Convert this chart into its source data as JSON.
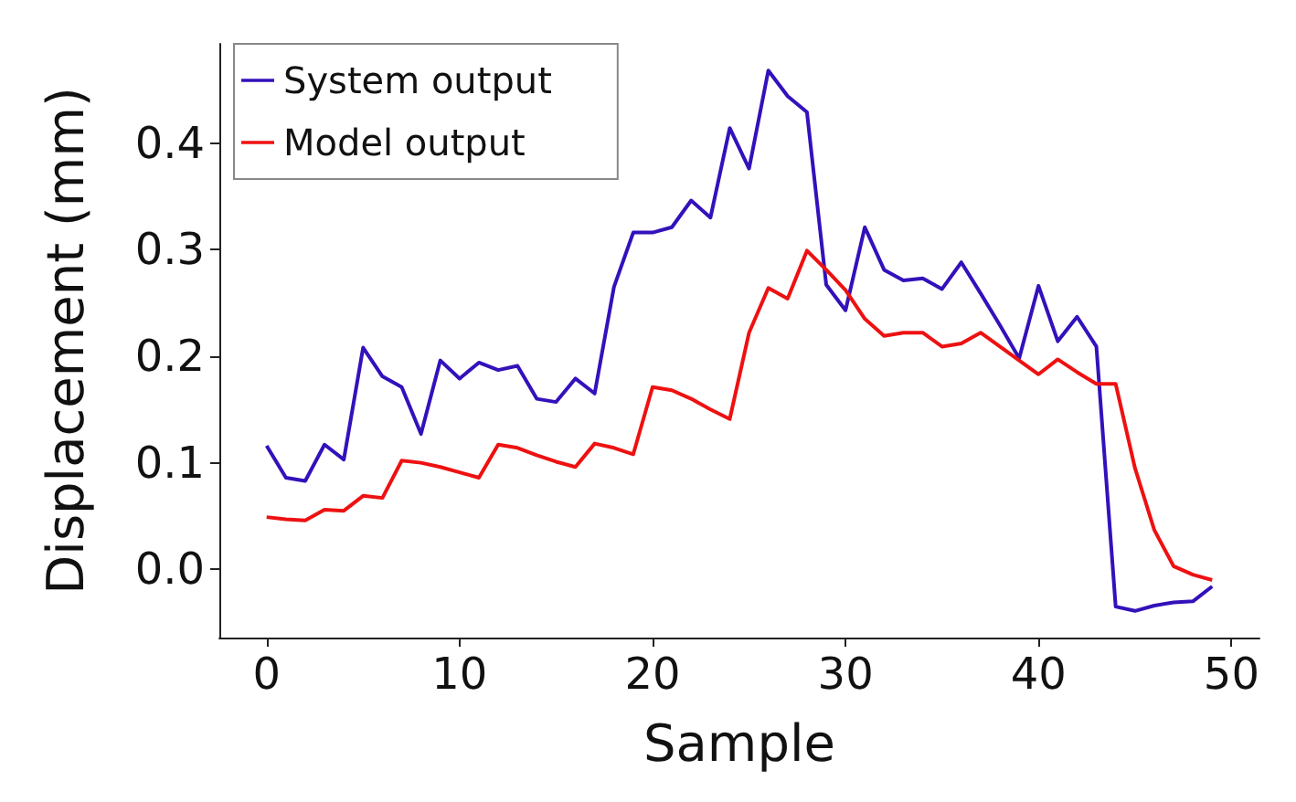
{
  "chart_data": {
    "type": "line",
    "xlabel": "Sample",
    "ylabel": "Displacement (mm)",
    "x": [
      0,
      1,
      2,
      3,
      4,
      5,
      6,
      7,
      8,
      9,
      10,
      11,
      12,
      13,
      14,
      15,
      16,
      17,
      18,
      19,
      20,
      21,
      22,
      23,
      24,
      25,
      26,
      27,
      28,
      29,
      30,
      31,
      32,
      33,
      34,
      35,
      36,
      37,
      38,
      39,
      40,
      41,
      42,
      43,
      44,
      45,
      46,
      47,
      48,
      49
    ],
    "series": [
      {
        "name": "System output",
        "color": "#3311bb",
        "values": [
          0.116,
          0.086,
          0.083,
          0.117,
          0.103,
          0.208,
          0.181,
          0.171,
          0.127,
          0.196,
          0.179,
          0.194,
          0.187,
          0.191,
          0.16,
          0.157,
          0.179,
          0.165,
          0.265,
          0.316,
          0.316,
          0.321,
          0.346,
          0.33,
          0.414,
          0.376,
          0.468,
          0.444,
          0.429,
          0.267,
          0.243,
          0.321,
          0.281,
          0.271,
          0.273,
          0.263,
          0.288,
          0.259,
          0.229,
          0.198,
          0.266,
          0.214,
          0.237,
          0.209,
          -0.035,
          -0.039,
          -0.034,
          -0.031,
          -0.03,
          -0.016
        ]
      },
      {
        "name": "Model output",
        "color": "#ee1111",
        "values": [
          0.049,
          0.047,
          0.046,
          0.056,
          0.055,
          0.069,
          0.067,
          0.102,
          0.1,
          0.096,
          0.091,
          0.086,
          0.117,
          0.114,
          0.107,
          0.101,
          0.096,
          0.118,
          0.114,
          0.108,
          0.171,
          0.168,
          0.16,
          0.15,
          0.141,
          0.222,
          0.264,
          0.254,
          0.299,
          0.281,
          0.262,
          0.235,
          0.219,
          0.222,
          0.222,
          0.209,
          0.212,
          0.222,
          0.209,
          0.196,
          0.183,
          0.197,
          0.185,
          0.174,
          0.174,
          0.095,
          0.037,
          0.003,
          -0.005,
          -0.01
        ]
      }
    ],
    "xlim": [
      -2.45,
      51.45
    ],
    "xticks": [
      0,
      10,
      20,
      30,
      40,
      50
    ],
    "ylim": [
      -0.064,
      0.493
    ],
    "yticks": [
      {
        "value": 0,
        "label": "0.0"
      },
      {
        "value": 0.1,
        "label": "0.1"
      },
      {
        "value": 0.2,
        "label": "0.2"
      },
      {
        "value": 0.3,
        "label": "0.3"
      },
      {
        "value": 0.4,
        "label": "0.4"
      }
    ],
    "legend": "top left",
    "grid": false,
    "marker": "none",
    "line_style": "solid"
  }
}
